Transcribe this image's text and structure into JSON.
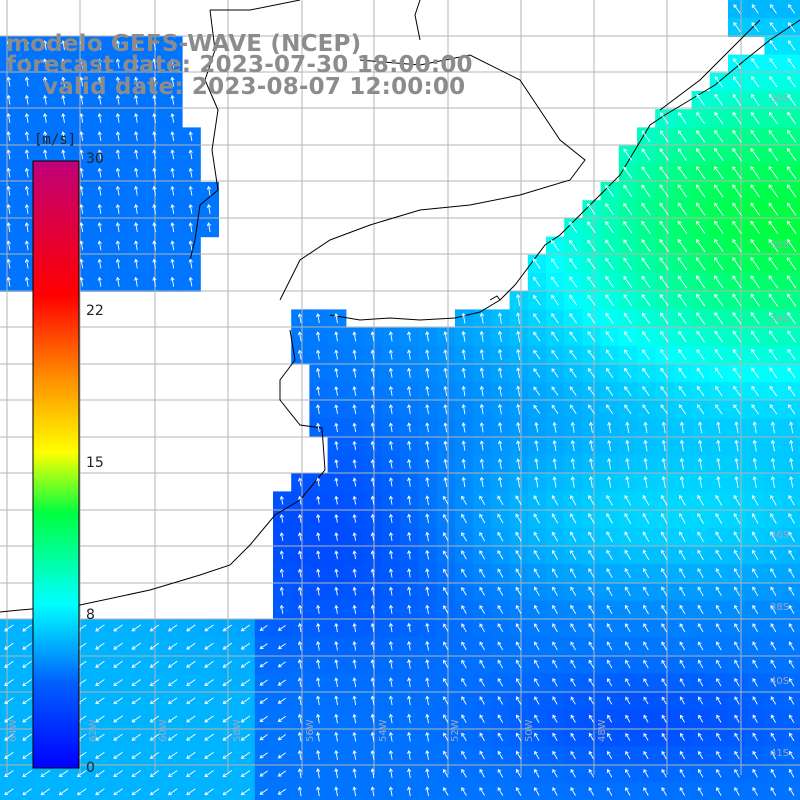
{
  "title": {
    "line1": "modelo GEFS-WAVE (NCEP)",
    "line2": "forecast date: 2023-07-30 18:00:00",
    "line3": "valid date: 2023-08-07 12:00:00"
  },
  "colorbar": {
    "unit": "[m/s]",
    "min": 0,
    "max": 30,
    "ticks": [
      "30",
      "22",
      "15",
      "8",
      "0"
    ],
    "tick_values": [
      30,
      22,
      15,
      8,
      0
    ],
    "colors": [
      "#0000ff",
      "#00a0ff",
      "#00ffff",
      "#00ff00",
      "#ffff00",
      "#ff8000",
      "#ff0000",
      "#c00080"
    ]
  },
  "map": {
    "lon_labels": [
      "64W",
      "62W",
      "60W",
      "58W",
      "56W",
      "54W",
      "52W",
      "50W",
      "48W",
      "41S"
    ],
    "lat_labels": [
      "30S",
      "32S",
      "34S",
      "36S",
      "38S",
      "40S"
    ],
    "land_color": "#ffffff",
    "grid_color": "#b4b4b4",
    "coast_color": "#000000",
    "arrow_color": "#ffffff"
  }
}
